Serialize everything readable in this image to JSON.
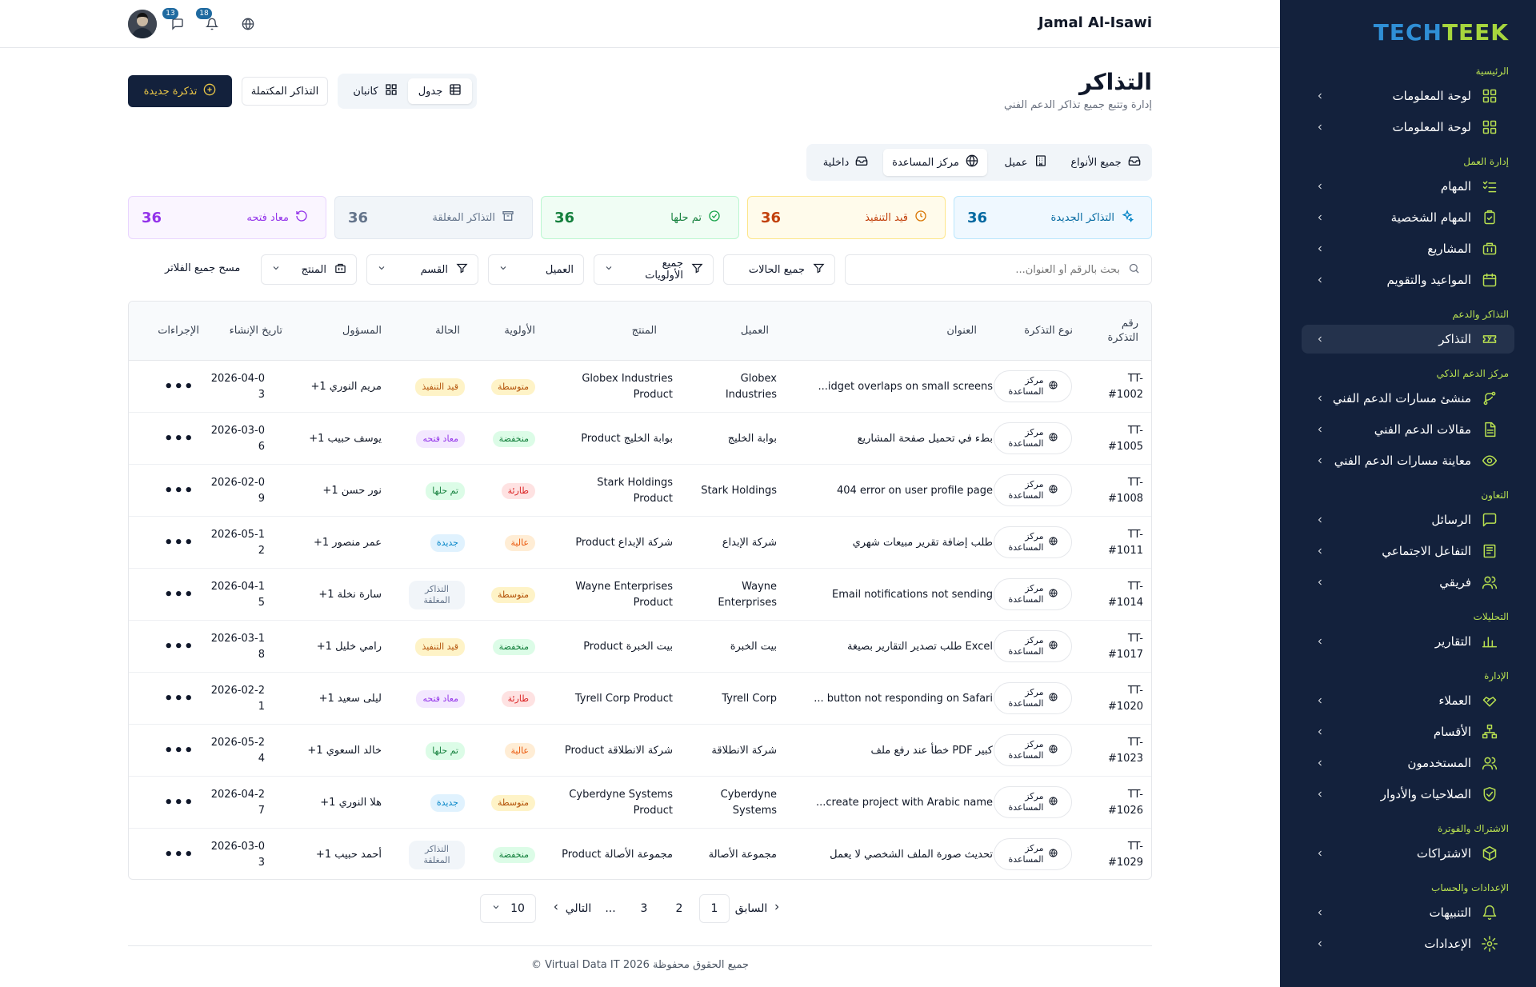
{
  "brand": {
    "logo_part1": "TECH",
    "logo_part2": "TEEK"
  },
  "sidebar": {
    "sections": [
      {
        "title": "الرئيسية",
        "items": [
          {
            "label": "لوحة المعلومات",
            "icon": "dashboard-icon"
          },
          {
            "label": "لوحة المعلومات",
            "icon": "dashboard-icon"
          }
        ]
      },
      {
        "title": "إدارة العمل",
        "items": [
          {
            "label": "المهام",
            "icon": "task-list-icon"
          },
          {
            "label": "المهام الشخصية",
            "icon": "clipboard-check-icon"
          },
          {
            "label": "المشاريع",
            "icon": "briefcase-icon"
          },
          {
            "label": "المواعيد والتقويم",
            "icon": "calendar-icon"
          }
        ]
      },
      {
        "title": "التذاكر والدعم",
        "items": [
          {
            "label": "التذاكر",
            "icon": "ticket-icon"
          }
        ]
      },
      {
        "title": "مركز الدعم الذكي",
        "items": [
          {
            "label": "منشئ مسارات الدعم الفني",
            "icon": "route-icon"
          },
          {
            "label": "مقالات الدعم الفني",
            "icon": "article-icon"
          },
          {
            "label": "معاينة مسارات الدعم الفني",
            "icon": "eye-icon"
          }
        ]
      },
      {
        "title": "التعاون",
        "items": [
          {
            "label": "الرسائل",
            "icon": "message-icon"
          },
          {
            "label": "التفاعل الاجتماعي",
            "icon": "newspaper-icon"
          },
          {
            "label": "فريقي",
            "icon": "users-icon"
          }
        ]
      },
      {
        "title": "التحليلات",
        "items": [
          {
            "label": "التقارير",
            "icon": "bar-chart-icon"
          }
        ]
      },
      {
        "title": "الإدارة",
        "items": [
          {
            "label": "العملاء",
            "icon": "handshake-icon"
          },
          {
            "label": "الأقسام",
            "icon": "org-chart-icon"
          },
          {
            "label": "المستخدمون",
            "icon": "users-icon"
          },
          {
            "label": "الصلاحيات والأدوار",
            "icon": "shield-check-icon"
          }
        ]
      },
      {
        "title": "الاشتراك والفوترة",
        "items": [
          {
            "label": "الاشتراكات",
            "icon": "package-icon"
          }
        ]
      },
      {
        "title": "الإعدادات والحساب",
        "items": [
          {
            "label": "التنبيهات",
            "icon": "bell-icon"
          },
          {
            "label": "الإعدادات",
            "icon": "gear-icon"
          }
        ]
      }
    ]
  },
  "topbar": {
    "user_name": "Jamal Al-Isawi",
    "messages_count": "13",
    "notifications_count": "18"
  },
  "page": {
    "title": "التذاكر",
    "subtitle": "إدارة وتتبع جميع تذاكر الدعم الفني"
  },
  "actions": {
    "new_ticket": "تذكرة جديدة",
    "completed_tickets": "التذاكر المكتملة",
    "view_table": "جدول",
    "view_kanban": "كانبان"
  },
  "type_tabs": [
    {
      "label": "جميع الأنواع"
    },
    {
      "label": "عميل"
    },
    {
      "label": "مركز المساعدة"
    },
    {
      "label": "داخلية"
    }
  ],
  "stats": [
    {
      "label": "التذاكر الجديدة",
      "value": "36"
    },
    {
      "label": "قيد التنفيذ",
      "value": "36"
    },
    {
      "label": "تم حلها",
      "value": "36"
    },
    {
      "label": "التذاكر المغلقة",
      "value": "36"
    },
    {
      "label": "معاد فتحه",
      "value": "36"
    }
  ],
  "filters": {
    "search_placeholder": "بحث بالرقم أو العنوان...",
    "status": "جميع الحالات",
    "priority": "جميع الأولويات",
    "client": "العميل",
    "department": "القسم",
    "product": "المنتج",
    "clear": "مسح جميع الفلاتر"
  },
  "table": {
    "headers": {
      "number": "رقم التذكرة",
      "type": "نوع التذكرة",
      "title": "العنوان",
      "client": "العميل",
      "product": "المنتج",
      "priority": "الأولوية",
      "status": "الحالة",
      "assignee": "المسؤول",
      "created": "تاريخ الإنشاء",
      "actions": "الإجراءات"
    },
    "rows": [
      {
        "number": "TT-#1002",
        "type": "مركز المساعدة",
        "title": "...idget overlaps on small screens",
        "client": "Globex Industries",
        "product": "Globex Industries Product",
        "priority": "متوسطة",
        "status": "قيد التنفيذ",
        "assignee": "مريم النوري 1+",
        "created": "2026-04-03",
        "more": "•••"
      },
      {
        "number": "TT-#1005",
        "type": "مركز المساعدة",
        "title": "بطء في تحميل صفحة المشاريع",
        "client": "بوابة الخليج",
        "product": "بوابة الخليج Product",
        "priority": "منخفضة",
        "status": "معاد فتحه",
        "assignee": "يوسف حبيب 1+",
        "created": "2026-03-06",
        "more": "•••"
      },
      {
        "number": "TT-#1008",
        "type": "مركز المساعدة",
        "title": "404 error on user profile page",
        "client": "Stark Holdings",
        "product": "Stark Holdings Product",
        "priority": "طارئة",
        "status": "تم حلها",
        "assignee": "نور حسن 1+",
        "created": "2026-02-09",
        "more": "•••"
      },
      {
        "number": "TT-#1011",
        "type": "مركز المساعدة",
        "title": "طلب إضافة تقرير مبيعات شهري",
        "client": "شركة الإبداع",
        "product": "شركة الإبداع Product",
        "priority": "عالية",
        "status": "جديدة",
        "assignee": "عمر منصور 1+",
        "created": "2026-05-12",
        "more": "•••"
      },
      {
        "number": "TT-#1014",
        "type": "مركز المساعدة",
        "title": "Email notifications not sending",
        "client": "Wayne Enterprises",
        "product": "Wayne Enterprises Product",
        "priority": "متوسطة",
        "status": "التذاكر المغلقة",
        "assignee": "سارة نخلة 1+",
        "created": "2026-04-15",
        "more": "•••"
      },
      {
        "number": "TT-#1017",
        "type": "مركز المساعدة",
        "title": "طلب تصدير التقارير بصيغة Excel",
        "client": "بيت الخبرة",
        "product": "بيت الخبرة Product",
        "priority": "منخفضة",
        "status": "قيد التنفيذ",
        "assignee": "رامي خليل 1+",
        "created": "2026-03-18",
        "more": "•••"
      },
      {
        "number": "TT-#1020",
        "type": "مركز المساعدة",
        "title": "... button not responding on Safari",
        "client": "Tyrell Corp",
        "product": "Tyrell Corp Product",
        "priority": "طارئة",
        "status": "معاد فتحه",
        "assignee": "ليلى سعيد 1+",
        "created": "2026-02-21",
        "more": "•••"
      },
      {
        "number": "TT-#1023",
        "type": "مركز المساعدة",
        "title": "خطأ عند رفع ملف PDF كبير",
        "client": "شركة الانطلاقة",
        "product": "شركة الانطلاقة Product",
        "priority": "عالية",
        "status": "تم حلها",
        "assignee": "خالد السعوي 1+",
        "created": "2026-05-24",
        "more": "•••"
      },
      {
        "number": "TT-#1026",
        "type": "مركز المساعدة",
        "title": "...create project with Arabic name",
        "client": "Cyberdyne Systems",
        "product": "Cyberdyne Systems Product",
        "priority": "متوسطة",
        "status": "جديدة",
        "assignee": "هلا النوري 1+",
        "created": "2026-04-27",
        "more": "•••"
      },
      {
        "number": "TT-#1029",
        "type": "مركز المساعدة",
        "title": "تحديث صورة الملف الشخصي لا يعمل",
        "client": "مجموعة الأصالة",
        "product": "مجموعة الأصالة Product",
        "priority": "منخفضة",
        "status": "التذاكر المغلقة",
        "assignee": "أحمد حبيب 1+",
        "created": "2026-03-03",
        "more": "•••"
      }
    ]
  },
  "pagination": {
    "prev": "السابق",
    "next": "التالي",
    "pages": [
      "1",
      "2",
      "3"
    ],
    "ellipsis": "...",
    "page_size": "10"
  },
  "footer": {
    "text": "جميع الحقوق محفوظة 2026 Virtual Data IT ©"
  },
  "colors": {
    "sidebar_bg": "#13213c",
    "accent_green": "#b8e050",
    "primary": "#13213c",
    "new_btn_text": "#e8c547",
    "priority": {
      "متوسطة": [
        "#fef3c7",
        "#b45309"
      ],
      "منخفضة": [
        "#dcfce7",
        "#15803d"
      ],
      "طارئة": [
        "#fee2e2",
        "#dc2626"
      ],
      "عالية": [
        "#ffedd5",
        "#ea580c"
      ]
    },
    "status": {
      "قيد التنفيذ": [
        "#fef3c7",
        "#b45309"
      ],
      "معاد فتحه": [
        "#f3e8ff",
        "#9333ea"
      ],
      "تم حلها": [
        "#dcfce7",
        "#15803d"
      ],
      "جديدة": [
        "#e0f2fe",
        "#0284c7"
      ],
      "التذاكر المغلقة": [
        "#f1f5f9",
        "#64748b"
      ]
    }
  }
}
